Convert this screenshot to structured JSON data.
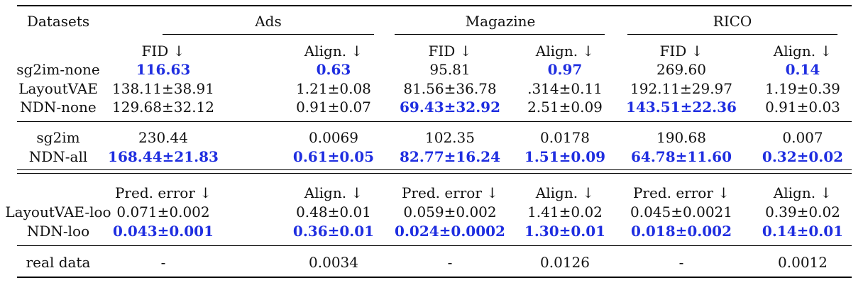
{
  "table": {
    "header": {
      "first_col": "Datasets",
      "groups": [
        "Ads",
        "Magazine",
        "RICO"
      ]
    },
    "sections": [
      {
        "subheaders": [
          "FID ↓",
          "Align. ↓",
          "FID ↓",
          "Align. ↓",
          "FID ↓",
          "Align. ↓"
        ],
        "rows": [
          {
            "label": "sg2im-none",
            "cells": [
              {
                "v": "116.63",
                "b": true
              },
              {
                "v": "0.63",
                "b": true
              },
              {
                "v": "95.81"
              },
              {
                "v": "0.97",
                "b": true
              },
              {
                "v": "269.60"
              },
              {
                "v": "0.14",
                "b": true
              }
            ]
          },
          {
            "label": "LayoutVAE",
            "cells": [
              {
                "v": "138.11±38.91"
              },
              {
                "v": "1.21±0.08"
              },
              {
                "v": "81.56±36.78"
              },
              {
                "v": ".314±0.11"
              },
              {
                "v": "192.11±29.97"
              },
              {
                "v": "1.19±0.39"
              }
            ]
          },
          {
            "label": "NDN-none",
            "cells": [
              {
                "v": "129.68±32.12"
              },
              {
                "v": "0.91±0.07"
              },
              {
                "v": "69.43±32.92",
                "b": true
              },
              {
                "v": "2.51±0.09"
              },
              {
                "v": "143.51±22.36",
                "b": true
              },
              {
                "v": "0.91±0.03"
              }
            ]
          }
        ]
      },
      {
        "rows": [
          {
            "label": "sg2im",
            "cells": [
              {
                "v": "230.44"
              },
              {
                "v": "0.0069"
              },
              {
                "v": "102.35"
              },
              {
                "v": "0.0178"
              },
              {
                "v": "190.68"
              },
              {
                "v": "0.007"
              }
            ]
          },
          {
            "label": "NDN-all",
            "cells": [
              {
                "v": "168.44±21.83",
                "b": true
              },
              {
                "v": "0.61±0.05",
                "b": true
              },
              {
                "v": "82.77±16.24",
                "b": true
              },
              {
                "v": "1.51±0.09",
                "b": true
              },
              {
                "v": "64.78±11.60",
                "b": true
              },
              {
                "v": "0.32±0.02",
                "b": true
              }
            ]
          }
        ]
      },
      {
        "subheaders": [
          "Pred. error ↓",
          "Align. ↓",
          "Pred. error ↓",
          "Align. ↓",
          "Pred. error ↓",
          "Align. ↓"
        ],
        "rows": [
          {
            "label": "LayoutVAE-loo",
            "cells": [
              {
                "v": "0.071±0.002"
              },
              {
                "v": "0.48±0.01"
              },
              {
                "v": "0.059±0.002"
              },
              {
                "v": "1.41±0.02"
              },
              {
                "v": "0.045±0.0021"
              },
              {
                "v": "0.39±0.02"
              }
            ]
          },
          {
            "label": "NDN-loo",
            "cells": [
              {
                "v": "0.043±0.001",
                "b": true
              },
              {
                "v": "0.36±0.01",
                "b": true
              },
              {
                "v": "0.024±0.0002",
                "b": true
              },
              {
                "v": "1.30±0.01",
                "b": true
              },
              {
                "v": "0.018±0.002",
                "b": true
              },
              {
                "v": "0.14±0.01",
                "b": true
              }
            ]
          }
        ]
      },
      {
        "rows": [
          {
            "label": "real data",
            "cells": [
              {
                "v": "-"
              },
              {
                "v": "0.0034"
              },
              {
                "v": "-"
              },
              {
                "v": "0.0126"
              },
              {
                "v": "-"
              },
              {
                "v": "0.0012"
              }
            ]
          }
        ]
      }
    ]
  }
}
